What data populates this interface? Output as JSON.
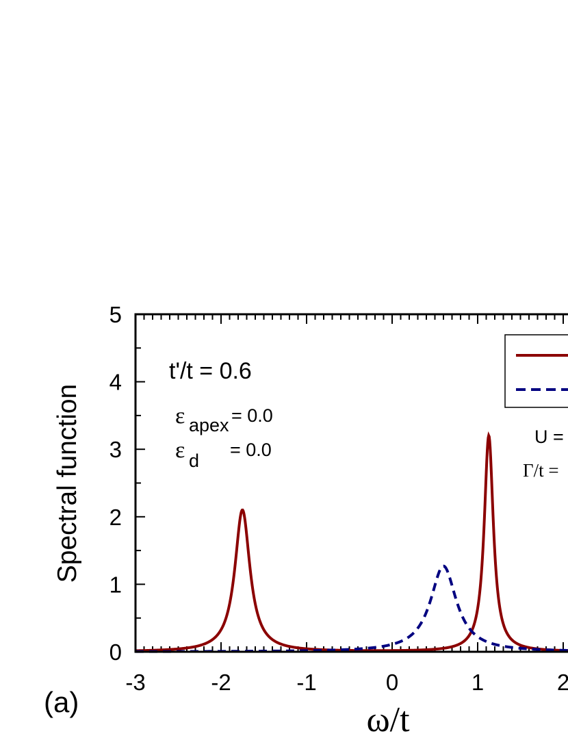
{
  "chart_data": {
    "type": "line",
    "xlabel": "ω/t",
    "ylabel": "Spectral function",
    "xlim": [
      -3,
      2
    ],
    "ylim": [
      0,
      5
    ],
    "x_ticks": [
      "-3",
      "-2",
      "-1",
      "0",
      "1",
      "2"
    ],
    "y_ticks": [
      "0",
      "1",
      "2",
      "3",
      "4",
      "5"
    ],
    "panel_label": "(a)",
    "annotations": {
      "tprime": "t'/t = 0.6",
      "eps_apex_sym": "ε",
      "eps_apex_sub": "apex",
      "eps_apex_val": "= 0.0",
      "eps_d_sym": "ε",
      "eps_d_sub": "d",
      "eps_d_val": "= 0.0",
      "u_label": "U =",
      "gamma_label": "Γ/t ="
    },
    "series": [
      {
        "style": "solid",
        "color": "#8b0000",
        "peaks": [
          {
            "center": -1.75,
            "height": 2.1,
            "halfwidth": 0.107
          },
          {
            "center": 1.13,
            "height": 3.2,
            "halfwidth": 0.065
          }
        ]
      },
      {
        "style": "dashed",
        "color": "#000080",
        "peaks": [
          {
            "center": 0.6,
            "height": 1.27,
            "halfwidth": 0.185
          }
        ]
      }
    ]
  }
}
